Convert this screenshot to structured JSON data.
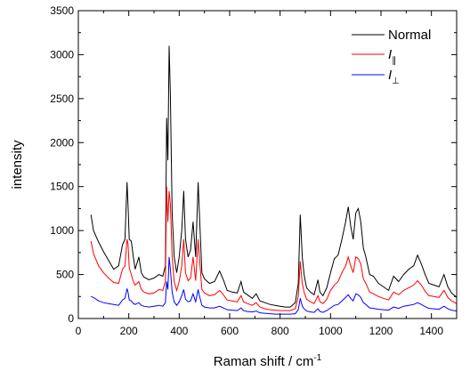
{
  "chart_data": {
    "type": "line",
    "xlabel": "Raman shift / cm",
    "xlabel_superscript": "-1",
    "ylabel": "intensity",
    "xlim": [
      0,
      1500
    ],
    "ylim": [
      0,
      3500
    ],
    "x_ticks": [
      0,
      200,
      400,
      600,
      800,
      1000,
      1200,
      1400
    ],
    "x_tick_labels": [
      "0",
      "200",
      "400",
      "600",
      "800",
      "1000",
      "1200",
      "1400"
    ],
    "y_ticks": [
      0,
      500,
      1000,
      1500,
      2000,
      2500,
      3000,
      3500
    ],
    "y_tick_labels": [
      "0",
      "500",
      "1000",
      "1500",
      "2000",
      "2500",
      "3000",
      "3500"
    ],
    "grid": false,
    "legend_position": "top-right",
    "series": [
      {
        "name": "Normal",
        "color": "#000000",
        "x": [
          50,
          60,
          80,
          100,
          120,
          140,
          160,
          175,
          185,
          193,
          197,
          202,
          210,
          218,
          225,
          240,
          250,
          260,
          280,
          300,
          320,
          335,
          345,
          350,
          355,
          360,
          365,
          372,
          380,
          390,
          400,
          410,
          418,
          425,
          435,
          445,
          455,
          465,
          475,
          480,
          490,
          500,
          520,
          540,
          560,
          575,
          590,
          610,
          630,
          645,
          655,
          670,
          690,
          705,
          720,
          740,
          760,
          780,
          800,
          820,
          840,
          860,
          872,
          880,
          888,
          895,
          905,
          920,
          935,
          950,
          958,
          970,
          985,
          1000,
          1015,
          1030,
          1045,
          1060,
          1070,
          1080,
          1090,
          1100,
          1110,
          1120,
          1130,
          1140,
          1155,
          1170,
          1190,
          1210,
          1230,
          1250,
          1270,
          1290,
          1310,
          1330,
          1345,
          1360,
          1375,
          1390,
          1410,
          1430,
          1450,
          1465,
          1480,
          1500
        ],
        "y": [
          1180,
          1000,
          870,
          760,
          660,
          560,
          600,
          840,
          900,
          1550,
          1300,
          900,
          880,
          700,
          560,
          700,
          520,
          470,
          440,
          460,
          500,
          480,
          600,
          2280,
          1800,
          3100,
          2550,
          1200,
          700,
          520,
          700,
          1000,
          1450,
          900,
          700,
          780,
          1100,
          700,
          1550,
          1200,
          520,
          450,
          400,
          420,
          540,
          440,
          320,
          300,
          290,
          420,
          300,
          270,
          230,
          280,
          200,
          180,
          160,
          150,
          140,
          130,
          130,
          180,
          400,
          1180,
          700,
          500,
          350,
          300,
          270,
          440,
          300,
          260,
          350,
          520,
          680,
          720,
          900,
          1100,
          1270,
          1050,
          900,
          1200,
          1250,
          1100,
          800,
          700,
          500,
          480,
          400,
          360,
          320,
          480,
          420,
          500,
          560,
          600,
          720,
          620,
          500,
          400,
          380,
          360,
          500,
          360,
          290,
          240
        ]
      },
      {
        "name": "I∥",
        "label_letter": "I",
        "label_subscript": "∥",
        "color": "#ff0000",
        "x": [
          50,
          60,
          80,
          100,
          120,
          140,
          160,
          175,
          185,
          193,
          197,
          202,
          210,
          218,
          225,
          240,
          250,
          260,
          280,
          300,
          320,
          335,
          345,
          350,
          355,
          360,
          365,
          372,
          380,
          390,
          400,
          410,
          418,
          425,
          435,
          445,
          455,
          465,
          475,
          480,
          490,
          500,
          520,
          540,
          560,
          575,
          590,
          610,
          630,
          645,
          655,
          670,
          690,
          705,
          720,
          740,
          760,
          780,
          800,
          820,
          840,
          860,
          872,
          880,
          888,
          895,
          905,
          920,
          935,
          950,
          958,
          970,
          985,
          1000,
          1015,
          1030,
          1045,
          1060,
          1070,
          1080,
          1090,
          1100,
          1110,
          1120,
          1130,
          1140,
          1155,
          1170,
          1190,
          1210,
          1230,
          1250,
          1270,
          1290,
          1310,
          1330,
          1345,
          1360,
          1375,
          1390,
          1410,
          1430,
          1450,
          1465,
          1480,
          1500
        ],
        "y": [
          880,
          740,
          600,
          520,
          460,
          410,
          400,
          560,
          600,
          900,
          850,
          580,
          500,
          420,
          380,
          420,
          330,
          300,
          280,
          290,
          330,
          320,
          420,
          1500,
          1100,
          1450,
          1300,
          700,
          420,
          320,
          420,
          600,
          900,
          520,
          430,
          460,
          700,
          430,
          900,
          700,
          330,
          290,
          260,
          270,
          320,
          270,
          210,
          200,
          190,
          260,
          190,
          170,
          150,
          180,
          130,
          110,
          100,
          95,
          90,
          90,
          90,
          110,
          250,
          650,
          400,
          300,
          220,
          190,
          170,
          260,
          190,
          170,
          220,
          320,
          380,
          420,
          520,
          600,
          700,
          600,
          520,
          700,
          680,
          620,
          450,
          400,
          300,
          280,
          250,
          230,
          210,
          300,
          270,
          320,
          350,
          380,
          430,
          380,
          310,
          260,
          250,
          240,
          320,
          240,
          200,
          170
        ]
      },
      {
        "name": "I⊥",
        "label_letter": "I",
        "label_subscript": "⊥",
        "color": "#0000ff",
        "x": [
          50,
          60,
          80,
          100,
          120,
          140,
          160,
          175,
          185,
          193,
          197,
          202,
          210,
          218,
          225,
          240,
          250,
          260,
          280,
          300,
          320,
          335,
          345,
          350,
          355,
          360,
          365,
          372,
          380,
          390,
          400,
          410,
          418,
          425,
          435,
          445,
          455,
          465,
          475,
          480,
          490,
          500,
          520,
          540,
          560,
          575,
          590,
          610,
          630,
          645,
          655,
          670,
          690,
          705,
          720,
          740,
          760,
          780,
          800,
          820,
          840,
          860,
          872,
          880,
          888,
          895,
          905,
          920,
          935,
          950,
          958,
          970,
          985,
          1000,
          1015,
          1030,
          1045,
          1060,
          1070,
          1080,
          1090,
          1100,
          1110,
          1120,
          1130,
          1140,
          1155,
          1170,
          1190,
          1210,
          1230,
          1250,
          1270,
          1290,
          1310,
          1330,
          1345,
          1360,
          1375,
          1390,
          1410,
          1430,
          1450,
          1465,
          1480,
          1500
        ],
        "y": [
          250,
          240,
          200,
          180,
          170,
          160,
          150,
          210,
          230,
          340,
          300,
          210,
          200,
          170,
          160,
          180,
          150,
          140,
          130,
          140,
          150,
          140,
          180,
          420,
          330,
          700,
          560,
          300,
          190,
          150,
          190,
          260,
          330,
          220,
          190,
          200,
          280,
          190,
          330,
          260,
          150,
          130,
          120,
          120,
          140,
          120,
          100,
          95,
          90,
          120,
          90,
          80,
          75,
          85,
          65,
          60,
          55,
          50,
          50,
          50,
          50,
          55,
          100,
          230,
          140,
          110,
          85,
          75,
          70,
          110,
          80,
          70,
          90,
          120,
          150,
          160,
          200,
          240,
          270,
          230,
          200,
          280,
          270,
          240,
          180,
          160,
          120,
          115,
          105,
          100,
          95,
          130,
          115,
          140,
          150,
          160,
          180,
          160,
          135,
          115,
          110,
          105,
          140,
          110,
          95,
          85
        ]
      }
    ]
  }
}
